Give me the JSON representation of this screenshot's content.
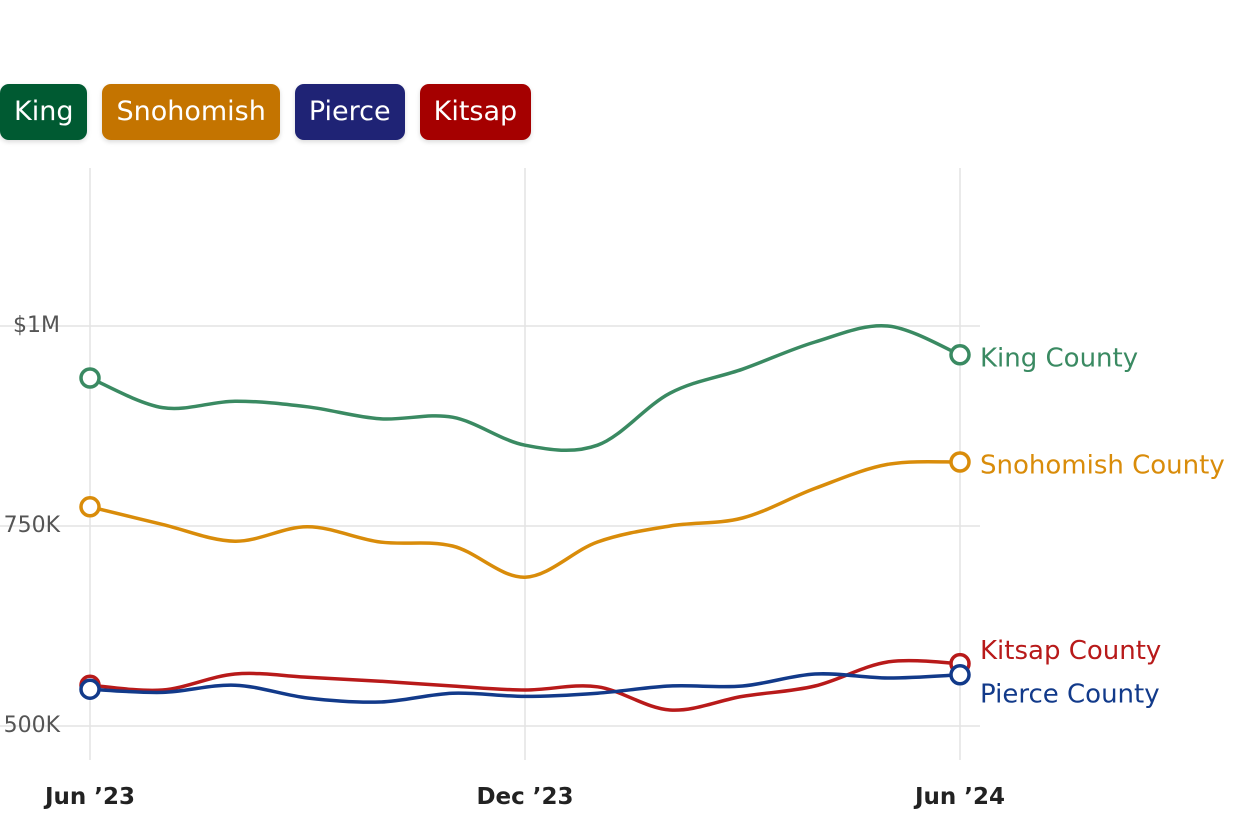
{
  "buttons": [
    {
      "label": "King",
      "color": "#005a32"
    },
    {
      "label": "Snohomish",
      "color": "#c47400"
    },
    {
      "label": "Pierce",
      "color": "#1f2375"
    },
    {
      "label": "Kitsap",
      "color": "#a50000"
    }
  ],
  "chart_data": {
    "type": "line",
    "title": "",
    "xlabel": "",
    "ylabel": "",
    "x": [
      "2023-06",
      "2023-07",
      "2023-08",
      "2023-09",
      "2023-10",
      "2023-11",
      "2023-12",
      "2024-01",
      "2024-02",
      "2024-03",
      "2024-04",
      "2024-05",
      "2024-06"
    ],
    "x_ticks": [
      {
        "value": "2023-06",
        "label": "Jun ’23"
      },
      {
        "value": "2023-12",
        "label": "Dec ’23"
      },
      {
        "value": "2024-06",
        "label": "Jun ’24"
      }
    ],
    "y_ticks": [
      {
        "value": 500000,
        "label": "500K"
      },
      {
        "value": 750000,
        "label": "750K"
      },
      {
        "value": 1000000,
        "label": "$1M"
      }
    ],
    "ylim": [
      460000,
      1200000
    ],
    "grid": true,
    "series": [
      {
        "name": "King County",
        "color": "#3a8a62",
        "values": [
          935000,
          898000,
          906000,
          899000,
          884000,
          886000,
          851000,
          851000,
          916000,
          946000,
          980000,
          1000000,
          964000
        ]
      },
      {
        "name": "Snohomish County",
        "color": "#d98c0a",
        "values": [
          774000,
          752000,
          731000,
          749000,
          730000,
          725000,
          686000,
          730000,
          750000,
          760000,
          797000,
          827000,
          830000
        ]
      },
      {
        "name": "Kitsap County",
        "color": "#b81a1a",
        "values": [
          551000,
          545000,
          565000,
          561000,
          556000,
          550000,
          545000,
          549000,
          520000,
          537000,
          550000,
          580000,
          578000
        ]
      },
      {
        "name": "Pierce County",
        "color": "#123a8a",
        "values": [
          546000,
          542000,
          551000,
          535000,
          530000,
          541000,
          537000,
          541000,
          550000,
          550000,
          565000,
          560000,
          564000
        ]
      }
    ]
  }
}
